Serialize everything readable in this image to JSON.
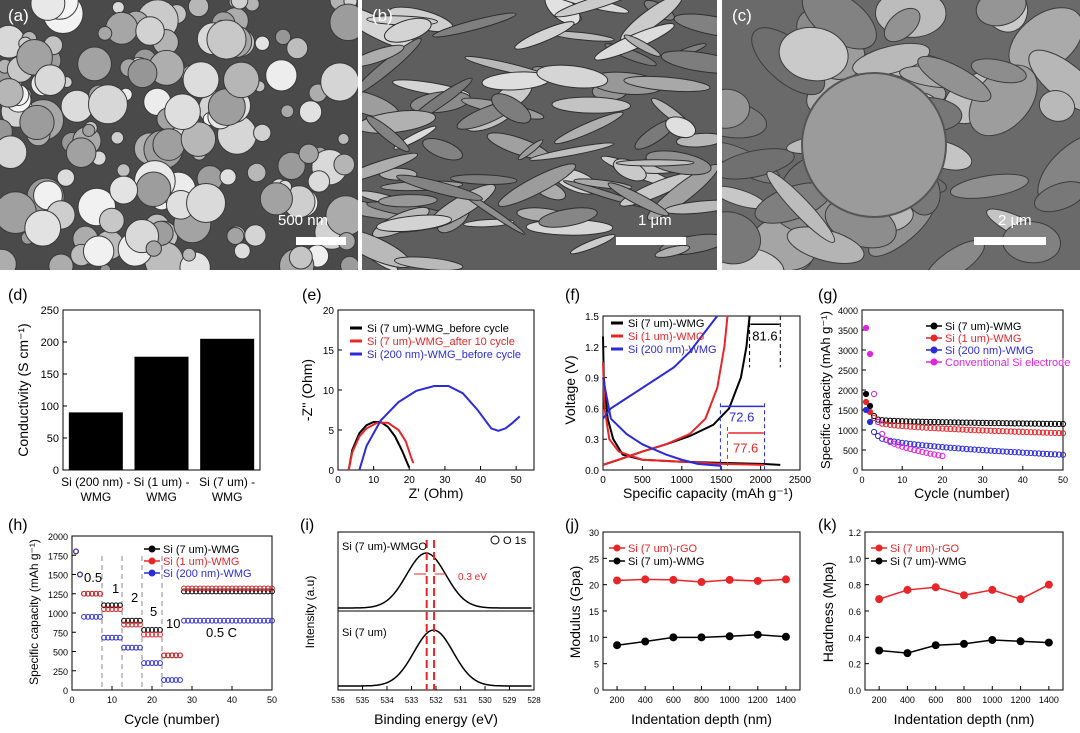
{
  "images": [
    {
      "label": "(a)",
      "scale": "500 nm"
    },
    {
      "label": "(b)",
      "scale": "1 μm"
    },
    {
      "label": "(c)",
      "scale": "2 μm"
    }
  ],
  "colors": {
    "black": "#000000",
    "red": "#e8262a",
    "blue": "#2b2bd8",
    "magenta": "#e024e0"
  },
  "chart_data": [
    {
      "id": "d",
      "type": "bar",
      "panel": "(d)",
      "ylabel": "Conductivity (S cm⁻¹)",
      "categories": [
        [
          "Si (200 nm) -",
          "WMG"
        ],
        [
          "Si (1 um) -",
          "WMG"
        ],
        [
          "Si (7 um) -",
          "WMG"
        ]
      ],
      "values": [
        90,
        177,
        205
      ],
      "ylim": [
        0,
        250
      ],
      "yticks": [
        0,
        50,
        100,
        150,
        200,
        250
      ]
    },
    {
      "id": "e",
      "type": "line",
      "panel": "(e)",
      "xlabel": "Z' (Ohm)",
      "ylabel": "-Z'' (Ohm)",
      "xlim": [
        0,
        55
      ],
      "ylim": [
        0,
        20
      ],
      "xticks": [
        0,
        10,
        20,
        30,
        40,
        50
      ],
      "yticks": [
        0,
        5,
        10,
        15,
        20
      ],
      "legend": [
        "Si (7 um)-WMG_before cycle",
        "Si (7 um)-WMG_after 10 cycle",
        "Si (200 nm)-WMG_before cycle"
      ],
      "series": [
        {
          "name": "Si (7 um)-WMG_before cycle",
          "color": "black",
          "x": [
            3,
            4,
            6,
            8,
            10,
            12,
            14,
            16,
            18,
            19.5,
            20
          ],
          "y": [
            0,
            2.5,
            4.6,
            5.6,
            6.0,
            6.0,
            5.4,
            4.2,
            2.4,
            0.8,
            0.3
          ]
        },
        {
          "name": "Si (7 um)-WMG_after 10 cycle",
          "color": "red",
          "x": [
            3,
            4,
            6,
            8,
            11,
            14,
            17,
            19,
            20.5,
            21,
            21.3
          ],
          "y": [
            0,
            2.2,
            4.2,
            5.2,
            5.9,
            5.9,
            5.0,
            3.6,
            1.6,
            1.0,
            0.9
          ]
        },
        {
          "name": "Si (200 nm)-WMG_before cycle",
          "color": "blue",
          "x": [
            6,
            8,
            12,
            17,
            22,
            27,
            31,
            35,
            39,
            43,
            45,
            47,
            49,
            51
          ],
          "y": [
            0,
            3,
            6.2,
            8.5,
            9.9,
            10.5,
            10.5,
            9.6,
            7.6,
            5.2,
            4.9,
            5.2,
            5.9,
            6.7
          ]
        }
      ]
    },
    {
      "id": "f",
      "type": "line",
      "panel": "(f)",
      "xlabel": "Specific capacity (mAh g⁻¹)",
      "ylabel": "Voltage (V)",
      "xlim": [
        0,
        2500
      ],
      "ylim": [
        0,
        1.5
      ],
      "xticks": [
        0,
        500,
        1000,
        1500,
        2000,
        2500
      ],
      "yticks": [
        0.0,
        0.3,
        0.6,
        0.9,
        1.2,
        1.5
      ],
      "legend": [
        "Si (7 um)-WMG",
        "Si (1 um)-WMG",
        "Si (200 nm)-WMG"
      ],
      "annotations": [
        "81.6",
        "72.6",
        "77.6"
      ],
      "series": [
        {
          "name": "Si (7 um)-WMG",
          "color": "black",
          "charge": {
            "x": [
              0,
              200,
              500,
              800,
              1100,
              1400,
              1600,
              1750,
              1820,
              1860
            ],
            "y": [
              0.05,
              0.1,
              0.18,
              0.25,
              0.33,
              0.44,
              0.6,
              0.9,
              1.2,
              1.5
            ]
          },
          "discharge": {
            "x": [
              0,
              10,
              60,
              130,
              250,
              500,
              1000,
              1500,
              2000,
              2250
            ],
            "y": [
              1.3,
              0.9,
              0.5,
              0.3,
              0.15,
              0.1,
              0.08,
              0.07,
              0.06,
              0.05
            ]
          }
        },
        {
          "name": "Si (1 um)-WMG",
          "color": "red",
          "charge": {
            "x": [
              0,
              200,
              500,
              800,
              1100,
              1300,
              1450,
              1540,
              1580
            ],
            "y": [
              0.05,
              0.1,
              0.18,
              0.25,
              0.35,
              0.5,
              0.8,
              1.2,
              1.5
            ]
          },
          "discharge": {
            "x": [
              0,
              20,
              80,
              200,
              500,
              1000,
              1500,
              2050
            ],
            "y": [
              1.05,
              0.6,
              0.3,
              0.18,
              0.1,
              0.08,
              0.06,
              0.05
            ]
          }
        },
        {
          "name": "Si (200 nm)-WMG",
          "color": "blue",
          "charge": {
            "x": [
              0,
              100,
              300,
              500,
              700,
              900,
              1100,
              1300,
              1450
            ],
            "y": [
              0.5,
              0.6,
              0.7,
              0.8,
              0.9,
              1.0,
              1.15,
              1.35,
              1.5
            ]
          },
          "discharge": {
            "x": [
              0,
              100,
              300,
              500,
              800,
              1000,
              1200,
              1500
            ],
            "y": [
              0.9,
              0.5,
              0.35,
              0.25,
              0.15,
              0.1,
              0.06,
              0.04
            ]
          }
        }
      ]
    },
    {
      "id": "g",
      "type": "scatter",
      "panel": "(g)",
      "xlabel": "Cycle (number)",
      "ylabel": "Specific capacity (mAh g⁻¹)",
      "xlim": [
        0,
        50
      ],
      "ylim": [
        0,
        4000
      ],
      "xticks": [
        0,
        10,
        20,
        30,
        40,
        50
      ],
      "yticks": [
        0,
        500,
        1000,
        1500,
        2000,
        2500,
        3000,
        3500,
        4000
      ],
      "legend": [
        "Si (7 um)-WMG",
        "Si (1 um)-WMG",
        "Si (200 nm)-WMG",
        "Conventional Si electrode"
      ],
      "series": [
        {
          "name": "Si (7 um)-WMG",
          "color": "black",
          "start": [
            1900,
            1600,
            1350,
            1260
          ],
          "end": 1150
        },
        {
          "name": "Si (1 um)-WMG",
          "color": "red",
          "start": [
            1700,
            1450,
            1300,
            1200
          ],
          "end": 920
        },
        {
          "name": "Si (200 nm)-WMG",
          "color": "blue",
          "start": [
            1500,
            1200,
            950,
            850
          ],
          "end": 380
        },
        {
          "name": "Conventional Si electrode",
          "color": "magenta",
          "start": [
            3550,
            2900,
            1900,
            1200,
            900
          ],
          "end": 350,
          "last_cycle": 20
        }
      ]
    },
    {
      "id": "h",
      "type": "scatter",
      "panel": "(h)",
      "xlabel": "Cycle (number)",
      "ylabel": "Specific capacity (mAh g⁻¹)",
      "xlim": [
        0,
        50
      ],
      "ylim": [
        0,
        2000
      ],
      "xticks": [
        0,
        10,
        20,
        30,
        40,
        50
      ],
      "yticks": [
        0,
        250,
        500,
        750,
        1000,
        1250,
        1500,
        1750,
        2000
      ],
      "legend": [
        "Si (7 um)-WMG",
        "Si (1 um)-WMG",
        "Si (200 nm)-WMG"
      ],
      "rate_labels": [
        "0.5",
        "1",
        "2",
        "5",
        "10",
        "0.5 C"
      ],
      "segments": [
        [
          1,
          7
        ],
        [
          8,
          12
        ],
        [
          13,
          17
        ],
        [
          18,
          22
        ],
        [
          23,
          27
        ],
        [
          28,
          50
        ]
      ],
      "series": [
        {
          "name": "Si (7 um)-WMG",
          "color": "black",
          "values": [
            1250,
            1100,
            900,
            780,
            450,
            1280
          ]
        },
        {
          "name": "Si (1 um)-WMG",
          "color": "red",
          "values": [
            1250,
            1050,
            850,
            720,
            450,
            1320
          ]
        },
        {
          "name": "Si (200 nm)-WMG",
          "color": "blue",
          "values": [
            950,
            680,
            550,
            350,
            130,
            900
          ]
        }
      ]
    },
    {
      "id": "i",
      "type": "line",
      "panel": "(i)",
      "xlabel": "Binding energy (eV)",
      "ylabel": "Intensity (a.u)",
      "xticks": [
        536,
        535,
        534,
        533,
        532,
        531,
        530,
        529,
        528
      ],
      "labels": [
        "Si (7 um)-WMGO",
        "Si (7 um)",
        "O 1s",
        "0.3 eV"
      ],
      "peaks": [
        532.4,
        532.1
      ]
    },
    {
      "id": "j",
      "type": "line",
      "panel": "(j)",
      "xlabel": "Indentation depth (nm)",
      "ylabel": "Modulus (Gpa)",
      "xlim": [
        100,
        1500
      ],
      "ylim": [
        0,
        30
      ],
      "xticks": [
        200,
        400,
        600,
        800,
        1000,
        1200,
        1400
      ],
      "yticks": [
        0,
        5,
        10,
        15,
        20,
        25,
        30
      ],
      "x": [
        200,
        400,
        600,
        800,
        1000,
        1200,
        1400
      ],
      "legend": [
        "Si (7 um)-rGO",
        "Si (7 um)-WMG"
      ],
      "series": [
        {
          "name": "Si (7 um)-rGO",
          "color": "red",
          "values": [
            20.8,
            21.0,
            20.9,
            20.5,
            20.9,
            20.7,
            21.0
          ]
        },
        {
          "name": "Si (7 um)-WMG",
          "color": "black",
          "values": [
            8.5,
            9.2,
            10.0,
            10.0,
            10.2,
            10.5,
            10.1
          ]
        }
      ]
    },
    {
      "id": "k",
      "type": "line",
      "panel": "(k)",
      "xlabel": "Indentation depth (nm)",
      "ylabel": "Hardness (Mpa)",
      "xlim": [
        100,
        1500
      ],
      "ylim": [
        0,
        1.2
      ],
      "xticks": [
        200,
        400,
        600,
        800,
        1000,
        1200,
        1400
      ],
      "yticks": [
        0.0,
        0.2,
        0.4,
        0.6,
        0.8,
        1.0,
        1.2
      ],
      "x": [
        200,
        400,
        600,
        800,
        1000,
        1200,
        1400
      ],
      "legend": [
        "Si (7 um)-rGO",
        "Si (7 um)-WMG"
      ],
      "series": [
        {
          "name": "Si (7 um)-rGO",
          "color": "red",
          "values": [
            0.69,
            0.76,
            0.78,
            0.72,
            0.76,
            0.69,
            0.8
          ]
        },
        {
          "name": "Si (7 um)-WMG",
          "color": "black",
          "values": [
            0.3,
            0.28,
            0.34,
            0.35,
            0.38,
            0.37,
            0.36
          ]
        }
      ]
    }
  ]
}
